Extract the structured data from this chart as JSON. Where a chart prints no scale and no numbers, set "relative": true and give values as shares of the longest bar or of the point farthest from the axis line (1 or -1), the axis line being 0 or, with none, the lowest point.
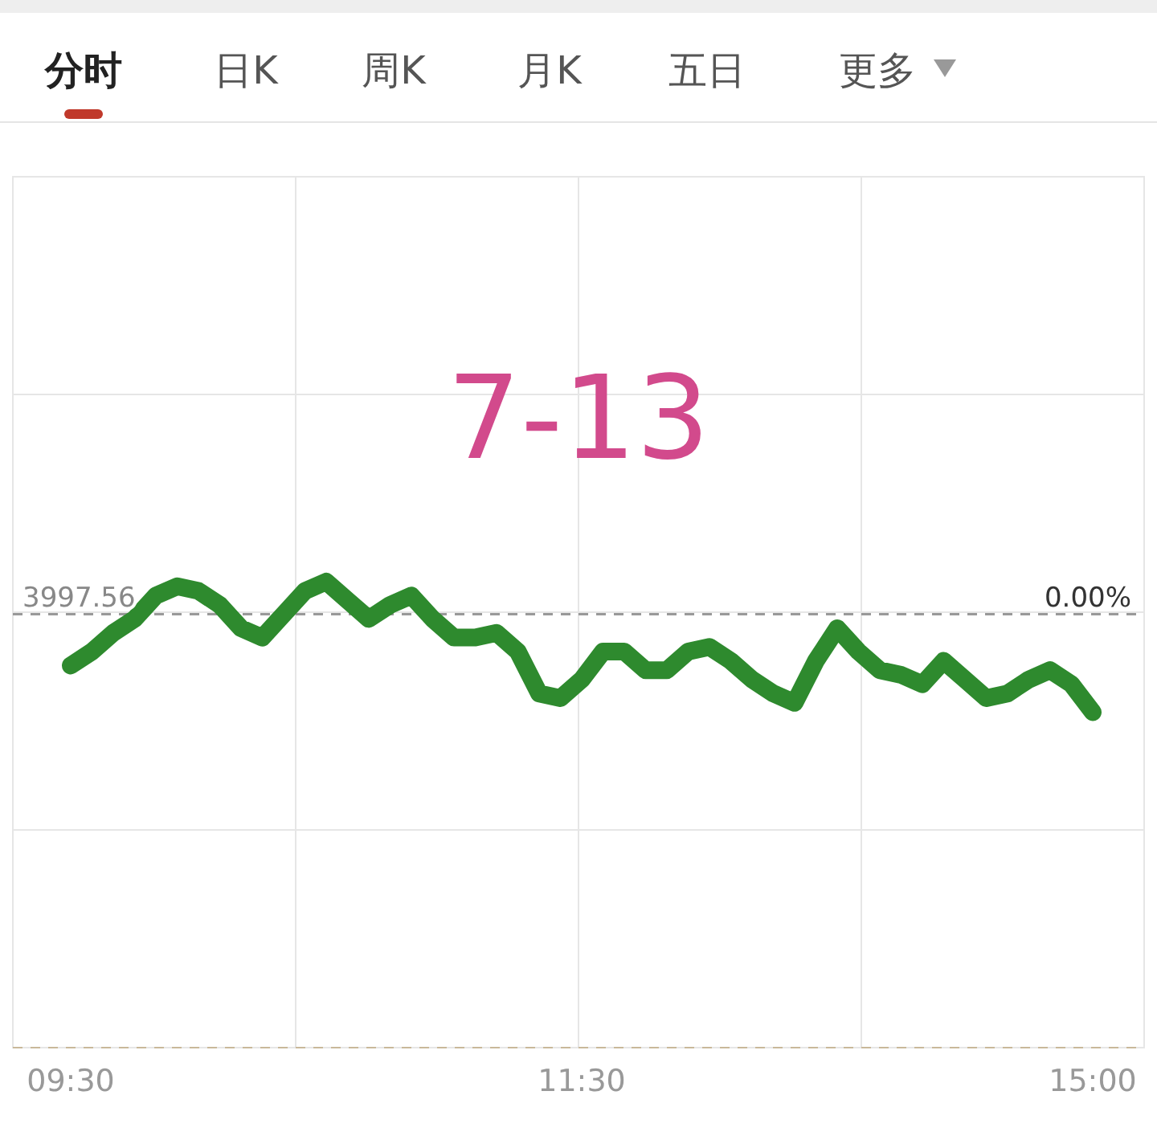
{
  "chart_data": {
    "type": "line",
    "title": "7-13",
    "relative": true,
    "annotations": [
      "分时",
      "日K",
      "周K",
      "月K",
      "五日",
      "更多",
      "3997.56",
      "0.00%"
    ],
    "categories": [
      "09:30",
      null,
      null,
      null,
      null,
      null,
      null,
      null,
      null,
      null,
      null,
      null,
      null,
      null,
      null,
      null,
      null,
      null,
      null,
      null,
      null,
      null,
      null,
      null,
      "11:30",
      null,
      null,
      null,
      null,
      null,
      null,
      null,
      null,
      null,
      null,
      null,
      null,
      null,
      null,
      null,
      null,
      null,
      null,
      null,
      null,
      null,
      null,
      null,
      "15:00"
    ],
    "series": [
      {
        "color": "#2e8a2e",
        "values": [
          0.82,
          0.85,
          0.89,
          0.92,
          0.97,
          0.99,
          0.98,
          0.95,
          0.9,
          0.88,
          0.93,
          0.98,
          1,
          0.96,
          0.92,
          0.95,
          0.97,
          0.92,
          0.88,
          0.88,
          0.89,
          0.85,
          0.76,
          0.75,
          0.79,
          0.85,
          0.85,
          0.81,
          0.81,
          0.85,
          0.86,
          0.83,
          0.79,
          0.76,
          0.74,
          0.83,
          0.9,
          0.85,
          0.81,
          0.8,
          0.78,
          0.83,
          0.79,
          0.75,
          0.76,
          0.79,
          0.81,
          0.78,
          0.72
        ]
      }
    ],
    "ref_lines": [
      {
        "axis": "y",
        "value": 0.93,
        "color": "#999999",
        "line_style": "dashed"
      }
    ],
    "grid": true,
    "line_style": "solid"
  }
}
